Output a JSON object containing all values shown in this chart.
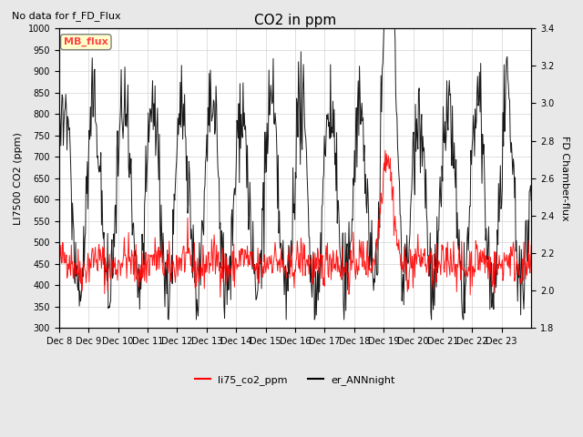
{
  "title": "CO2 in ppm",
  "subtitle": "No data for f_FD_Flux",
  "ylabel_left": "LI7500 CO2 (ppm)",
  "ylabel_right": "FD Chamber-flux",
  "ylim_left": [
    300,
    1000
  ],
  "ylim_right": [
    1.8,
    3.4
  ],
  "legend_labels": [
    "li75_co2_ppm",
    "er_ANNnight"
  ],
  "legend_colors": [
    "red",
    "black"
  ],
  "mb_flux_label": "MB_flux",
  "mb_flux_color": "#FF4444",
  "mb_flux_bg": "#FFFFCC",
  "xtick_labels": [
    "Dec 8",
    "Dec 9",
    "Dec 10",
    "Dec 11",
    "Dec 12",
    "Dec 13",
    "Dec 14",
    "Dec 15",
    "Dec 16",
    "Dec 17",
    "Dec 18",
    "Dec 19",
    "Dec 20",
    "Dec 21",
    "Dec 22",
    "Dec 23"
  ],
  "n_days": 16,
  "points_per_day": 48,
  "background_color": "#E8E8E8",
  "plot_bg": "#FFFFFF"
}
